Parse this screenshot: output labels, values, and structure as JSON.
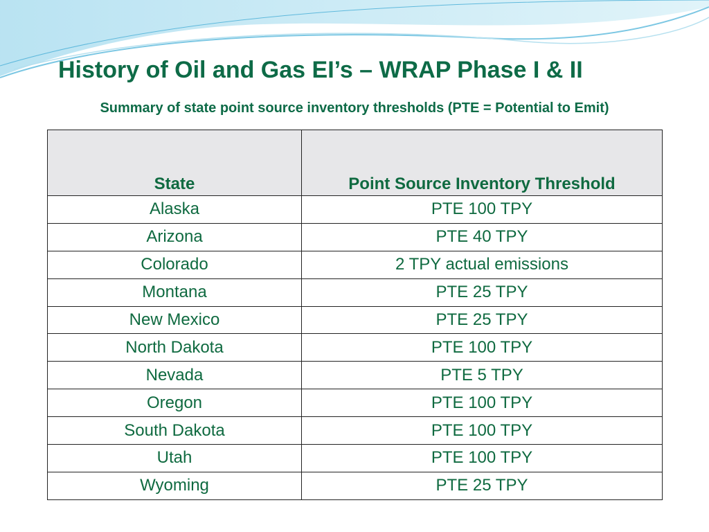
{
  "header": {
    "title": "History of Oil and Gas EI’s – WRAP Phase I & II",
    "subtitle": "Summary of state point source inventory thresholds (PTE = Potential to Emit)"
  },
  "table": {
    "columns": [
      "State",
      "Point Source Inventory Threshold"
    ],
    "rows": [
      [
        "Alaska",
        "PTE 100 TPY"
      ],
      [
        "Arizona",
        "PTE 40 TPY"
      ],
      [
        "Colorado",
        "2 TPY actual emissions"
      ],
      [
        "Montana",
        "PTE 25 TPY"
      ],
      [
        "New Mexico",
        "PTE 25 TPY"
      ],
      [
        "North Dakota",
        "PTE 100 TPY"
      ],
      [
        "Nevada",
        "PTE 5 TPY"
      ],
      [
        "Oregon",
        "PTE 100 TPY"
      ],
      [
        "South Dakota",
        "PTE 100 TPY"
      ],
      [
        "Utah",
        "PTE 100 TPY"
      ],
      [
        "Wyoming",
        "PTE 25 TPY"
      ]
    ]
  }
}
